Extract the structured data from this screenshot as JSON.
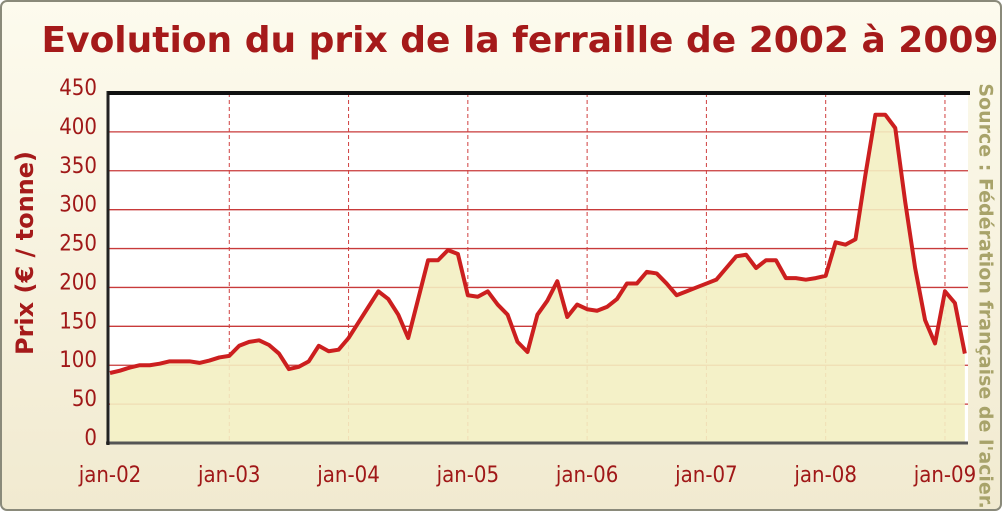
{
  "chart_data": {
    "type": "line",
    "title": "Evolution du prix de la ferraille de 2002 à 2009",
    "y_label": "Prix   (€ / tonne)",
    "source": "Source : Fédération française de l'acier.",
    "categories": [
      "jan-02",
      null,
      null,
      null,
      null,
      null,
      null,
      null,
      null,
      null,
      null,
      null,
      "jan-03",
      null,
      null,
      null,
      null,
      null,
      null,
      null,
      null,
      null,
      null,
      null,
      "jan-04",
      null,
      null,
      null,
      null,
      null,
      null,
      null,
      null,
      null,
      null,
      null,
      "jan-05",
      null,
      null,
      null,
      null,
      null,
      null,
      null,
      null,
      null,
      null,
      null,
      "jan-06",
      null,
      null,
      null,
      null,
      null,
      null,
      null,
      null,
      null,
      null,
      null,
      "jan-07",
      null,
      null,
      null,
      null,
      null,
      null,
      null,
      null,
      null,
      null,
      null,
      "jan-08",
      null,
      null,
      null,
      null,
      null,
      null,
      null,
      null,
      null,
      null,
      null,
      "jan-09",
      null,
      null
    ],
    "values": [
      90,
      93,
      97,
      100,
      100,
      102,
      105,
      105,
      105,
      103,
      106,
      110,
      112,
      125,
      130,
      132,
      126,
      115,
      95,
      98,
      105,
      125,
      118,
      120,
      135,
      155,
      175,
      195,
      185,
      165,
      135,
      185,
      235,
      235,
      248,
      243,
      190,
      188,
      195,
      178,
      165,
      130,
      117,
      165,
      183,
      208,
      162,
      178,
      172,
      170,
      175,
      185,
      205,
      205,
      220,
      218,
      205,
      190,
      195,
      200,
      205,
      210,
      225,
      240,
      242,
      225,
      235,
      235,
      212,
      212,
      210,
      212,
      215,
      258,
      255,
      262,
      345,
      422,
      422,
      405,
      310,
      225,
      158,
      128,
      195,
      180,
      115
    ],
    "color": "#cc1f1f",
    "fill": "#f3efc2",
    "ylim": [
      0,
      450
    ],
    "yticks": [
      0,
      50,
      100,
      150,
      200,
      250,
      300,
      350,
      400,
      450
    ],
    "grid": true
  }
}
